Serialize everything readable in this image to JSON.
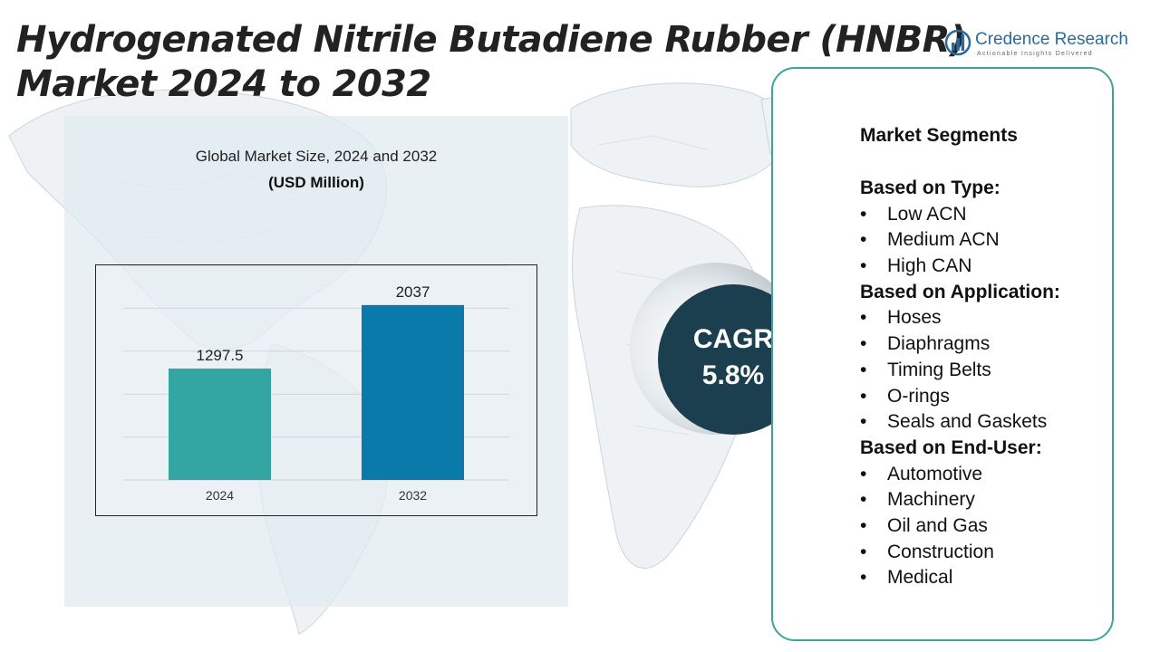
{
  "header": {
    "title_line1": "Hydrogenated Nitrile Butadiene Rubber (HNBR)",
    "title_line2": "Market 2024 to 2032"
  },
  "logo": {
    "name": "Credence Research",
    "tagline": "Actionable Insights Delivered",
    "icon": "bar-chart-globe-icon"
  },
  "chart_data": {
    "type": "bar",
    "title": "Global Market Size, 2024 and 2032",
    "unit": "(USD Million)",
    "categories": [
      "2024",
      "2032"
    ],
    "values": [
      1297.5,
      2037
    ],
    "value_labels": [
      "1297.5",
      "2037"
    ],
    "colors": [
      "#33a6a3",
      "#0a7aab"
    ],
    "ylim": [
      0,
      2500
    ],
    "grid": true,
    "legend": "none"
  },
  "cagr": {
    "label": "CAGR",
    "value": "5.8%",
    "color": "#1b3f4f"
  },
  "segments": {
    "heading": "Market Segments",
    "groups": [
      {
        "title": "Based on Type:",
        "items": [
          "Low ACN",
          "Medium ACN",
          "High CAN"
        ]
      },
      {
        "title": "Based on Application:",
        "items": [
          "Hoses",
          "Diaphragms",
          "Timing Belts",
          "O-rings",
          "Seals and Gaskets"
        ]
      },
      {
        "title": "Based on End-User:",
        "items": [
          "Automotive",
          "Machinery",
          "Oil and Gas",
          "Construction",
          "Medical"
        ]
      }
    ],
    "bullet": "•",
    "border_color": "#3fa39c"
  }
}
